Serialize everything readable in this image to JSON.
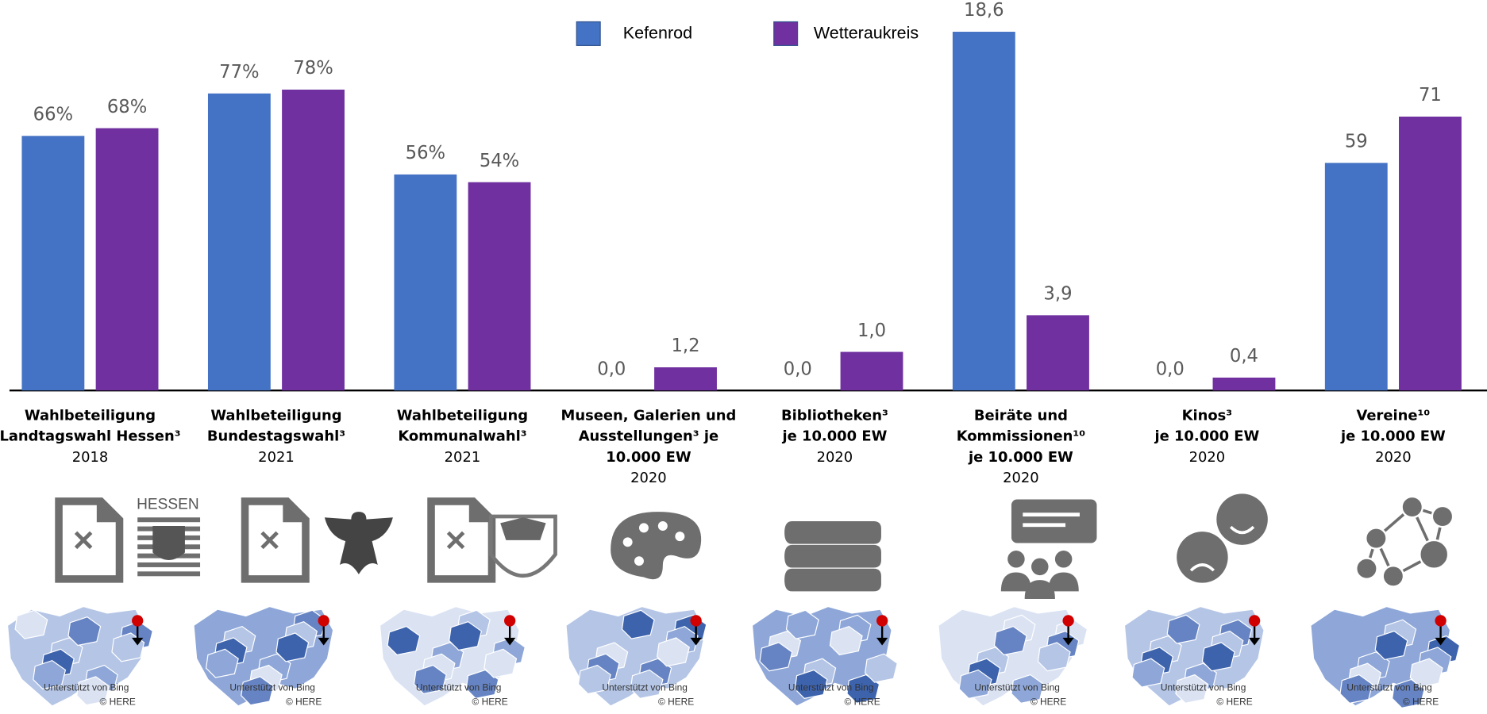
{
  "chart_data": {
    "type": "bar",
    "categories": [
      [
        "Wahlbeteiligung",
        "Landtagswahl Hessen³",
        "2018"
      ],
      [
        "Wahlbeteiligung",
        "Bundestagswahl³",
        "2021"
      ],
      [
        "Wahlbeteiligung",
        "Kommunalwahl³",
        "2021"
      ],
      [
        "Museen, Galerien und",
        "Ausstellungen³ je",
        "10.000 EW",
        "2020"
      ],
      [
        "Bibliotheken³",
        "je 10.000 EW",
        "2020"
      ],
      [
        "Beiräte und",
        "Kommissionen¹⁰",
        "je 10.000 EW",
        "2020"
      ],
      [
        "Kinos³",
        "je 10.000 EW",
        "2020"
      ],
      [
        "Vereine¹⁰",
        "je 10.000 EW",
        "2020"
      ]
    ],
    "series": [
      {
        "name": "Kefenrod",
        "color": "#4472c4",
        "values": [
          66,
          77,
          56,
          0.0,
          0.0,
          18.6,
          0.0,
          59
        ],
        "value_labels": [
          "66%",
          "77%",
          "56%",
          "0,0",
          "0,0",
          "18,6",
          "0,0",
          "59"
        ]
      },
      {
        "name": "Wetteraukreis",
        "color": "#7030a0",
        "values": [
          68,
          78,
          54,
          1.2,
          1.0,
          3.9,
          0.4,
          71
        ],
        "value_labels": [
          "68%",
          "78%",
          "54%",
          "1,2",
          "1,0",
          "3,9",
          "0,4",
          "71"
        ]
      }
    ],
    "ylims": [
      [
        0,
        100
      ],
      [
        0,
        100
      ],
      [
        0,
        100
      ],
      [
        0,
        20
      ],
      [
        0,
        10
      ],
      [
        0,
        20
      ],
      [
        0,
        12
      ],
      [
        0,
        100
      ]
    ]
  },
  "icon_text": "HESSEN",
  "maps": [
    {
      "credit": "Unterstützt von Bing",
      "copyright": "© HERE"
    },
    {
      "credit": "Unterstützt von Bing",
      "copyright": "© HERE"
    },
    {
      "credit": "Unterstützt von Bing",
      "copyright": "© HERE"
    },
    {
      "credit": "Unterstützt von Bing",
      "copyright": "© HERE"
    },
    {
      "credit": "Unterstützt von Bing",
      "copyright": "© HERE"
    },
    {
      "credit": "Unterstützt von Bing",
      "copyright": "© HERE"
    },
    {
      "credit": "Unterstützt von Bing",
      "copyright": "© HERE"
    },
    {
      "credit": "Unterstützt von Bing",
      "copyright": "© HERE"
    }
  ]
}
